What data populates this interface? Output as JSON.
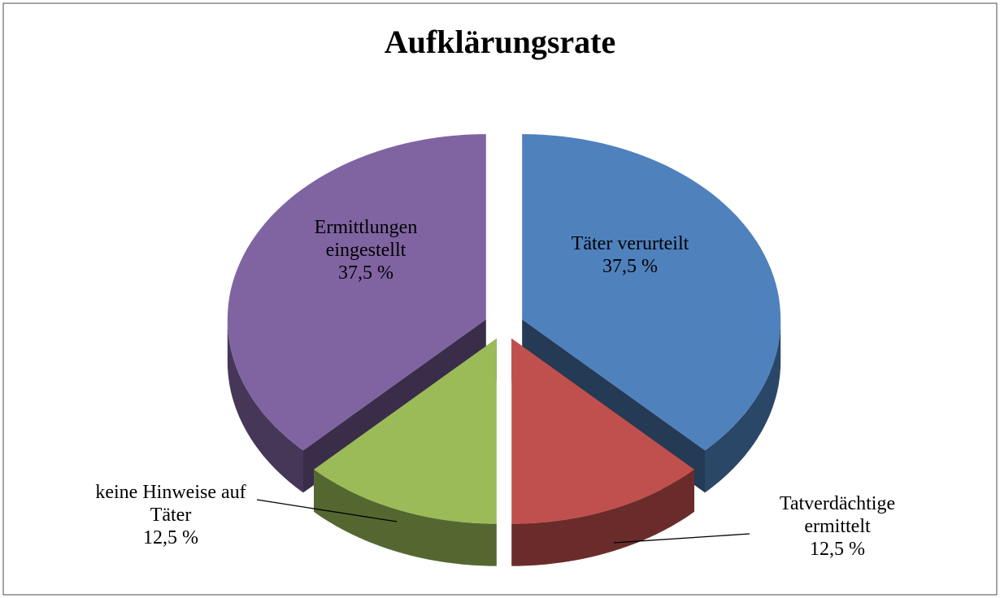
{
  "chart_data": {
    "type": "pie",
    "title": "Aufklärungsrate",
    "categories": [
      "Täter verurteilt",
      "Tatverdächtige ermittelt",
      "keine Hinweise auf Täter",
      "Ermittlungen eingestellt"
    ],
    "values": [
      37.5,
      12.5,
      12.5,
      37.5
    ],
    "value_labels": [
      "37,5 %",
      "12,5 %",
      "12,5 %",
      "37,5 %"
    ],
    "colors": [
      "#4f81bd",
      "#c0504d",
      "#9bbb59",
      "#8064a2"
    ]
  }
}
